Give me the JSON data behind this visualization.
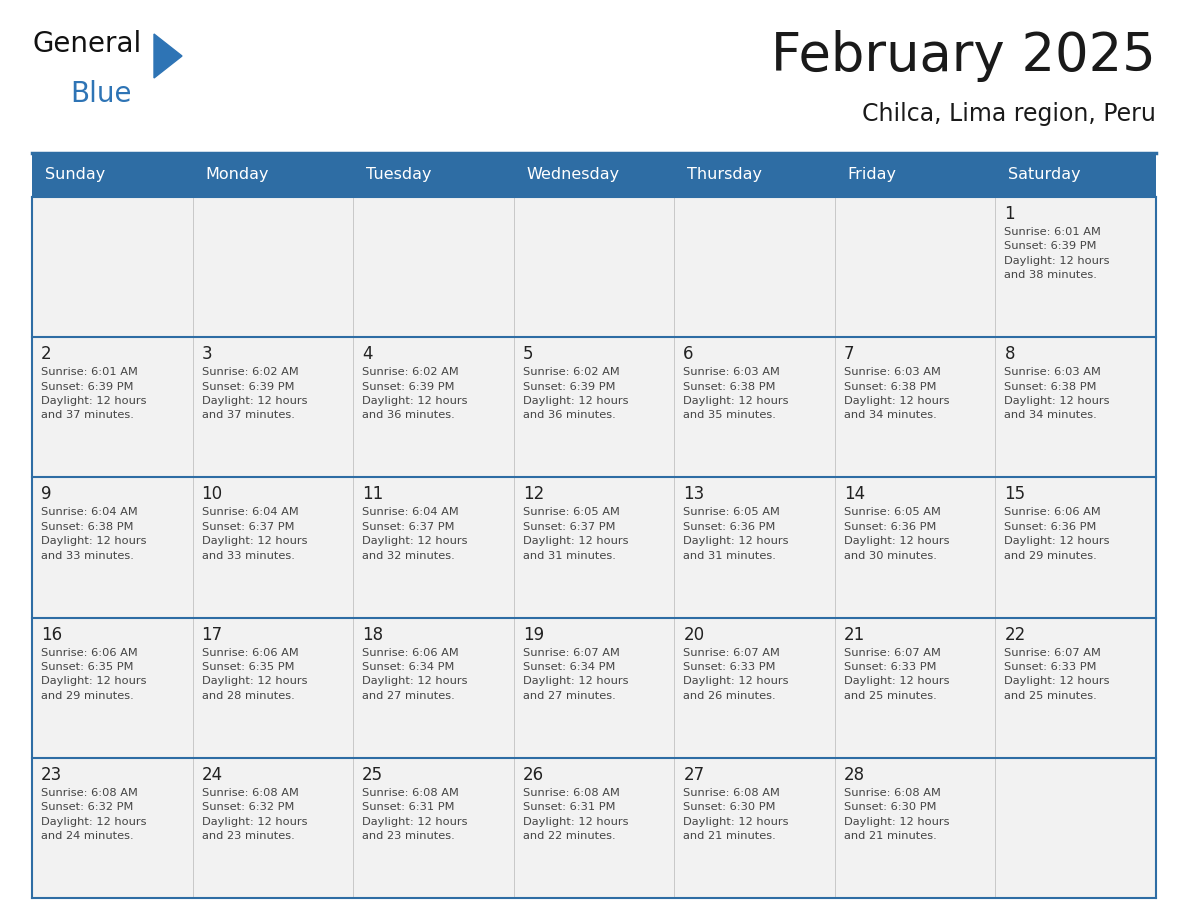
{
  "title": "February 2025",
  "subtitle": "Chilca, Lima region, Peru",
  "header_bg": "#2E6DA4",
  "header_text_color": "#FFFFFF",
  "day_names": [
    "Sunday",
    "Monday",
    "Tuesday",
    "Wednesday",
    "Thursday",
    "Friday",
    "Saturday"
  ],
  "row_bg": "#F2F2F2",
  "cell_text_color": "#444444",
  "day_num_color": "#222222",
  "title_color": "#1a1a1a",
  "subtitle_color": "#1a1a1a",
  "logo_general_color": "#111111",
  "logo_blue_color": "#2E74B5",
  "border_color": "#2E6DA4",
  "calendar": [
    [
      {
        "day": 0,
        "text": ""
      },
      {
        "day": 0,
        "text": ""
      },
      {
        "day": 0,
        "text": ""
      },
      {
        "day": 0,
        "text": ""
      },
      {
        "day": 0,
        "text": ""
      },
      {
        "day": 0,
        "text": ""
      },
      {
        "day": 1,
        "text": "Sunrise: 6:01 AM\nSunset: 6:39 PM\nDaylight: 12 hours\nand 38 minutes."
      }
    ],
    [
      {
        "day": 2,
        "text": "Sunrise: 6:01 AM\nSunset: 6:39 PM\nDaylight: 12 hours\nand 37 minutes."
      },
      {
        "day": 3,
        "text": "Sunrise: 6:02 AM\nSunset: 6:39 PM\nDaylight: 12 hours\nand 37 minutes."
      },
      {
        "day": 4,
        "text": "Sunrise: 6:02 AM\nSunset: 6:39 PM\nDaylight: 12 hours\nand 36 minutes."
      },
      {
        "day": 5,
        "text": "Sunrise: 6:02 AM\nSunset: 6:39 PM\nDaylight: 12 hours\nand 36 minutes."
      },
      {
        "day": 6,
        "text": "Sunrise: 6:03 AM\nSunset: 6:38 PM\nDaylight: 12 hours\nand 35 minutes."
      },
      {
        "day": 7,
        "text": "Sunrise: 6:03 AM\nSunset: 6:38 PM\nDaylight: 12 hours\nand 34 minutes."
      },
      {
        "day": 8,
        "text": "Sunrise: 6:03 AM\nSunset: 6:38 PM\nDaylight: 12 hours\nand 34 minutes."
      }
    ],
    [
      {
        "day": 9,
        "text": "Sunrise: 6:04 AM\nSunset: 6:38 PM\nDaylight: 12 hours\nand 33 minutes."
      },
      {
        "day": 10,
        "text": "Sunrise: 6:04 AM\nSunset: 6:37 PM\nDaylight: 12 hours\nand 33 minutes."
      },
      {
        "day": 11,
        "text": "Sunrise: 6:04 AM\nSunset: 6:37 PM\nDaylight: 12 hours\nand 32 minutes."
      },
      {
        "day": 12,
        "text": "Sunrise: 6:05 AM\nSunset: 6:37 PM\nDaylight: 12 hours\nand 31 minutes."
      },
      {
        "day": 13,
        "text": "Sunrise: 6:05 AM\nSunset: 6:36 PM\nDaylight: 12 hours\nand 31 minutes."
      },
      {
        "day": 14,
        "text": "Sunrise: 6:05 AM\nSunset: 6:36 PM\nDaylight: 12 hours\nand 30 minutes."
      },
      {
        "day": 15,
        "text": "Sunrise: 6:06 AM\nSunset: 6:36 PM\nDaylight: 12 hours\nand 29 minutes."
      }
    ],
    [
      {
        "day": 16,
        "text": "Sunrise: 6:06 AM\nSunset: 6:35 PM\nDaylight: 12 hours\nand 29 minutes."
      },
      {
        "day": 17,
        "text": "Sunrise: 6:06 AM\nSunset: 6:35 PM\nDaylight: 12 hours\nand 28 minutes."
      },
      {
        "day": 18,
        "text": "Sunrise: 6:06 AM\nSunset: 6:34 PM\nDaylight: 12 hours\nand 27 minutes."
      },
      {
        "day": 19,
        "text": "Sunrise: 6:07 AM\nSunset: 6:34 PM\nDaylight: 12 hours\nand 27 minutes."
      },
      {
        "day": 20,
        "text": "Sunrise: 6:07 AM\nSunset: 6:33 PM\nDaylight: 12 hours\nand 26 minutes."
      },
      {
        "day": 21,
        "text": "Sunrise: 6:07 AM\nSunset: 6:33 PM\nDaylight: 12 hours\nand 25 minutes."
      },
      {
        "day": 22,
        "text": "Sunrise: 6:07 AM\nSunset: 6:33 PM\nDaylight: 12 hours\nand 25 minutes."
      }
    ],
    [
      {
        "day": 23,
        "text": "Sunrise: 6:08 AM\nSunset: 6:32 PM\nDaylight: 12 hours\nand 24 minutes."
      },
      {
        "day": 24,
        "text": "Sunrise: 6:08 AM\nSunset: 6:32 PM\nDaylight: 12 hours\nand 23 minutes."
      },
      {
        "day": 25,
        "text": "Sunrise: 6:08 AM\nSunset: 6:31 PM\nDaylight: 12 hours\nand 23 minutes."
      },
      {
        "day": 26,
        "text": "Sunrise: 6:08 AM\nSunset: 6:31 PM\nDaylight: 12 hours\nand 22 minutes."
      },
      {
        "day": 27,
        "text": "Sunrise: 6:08 AM\nSunset: 6:30 PM\nDaylight: 12 hours\nand 21 minutes."
      },
      {
        "day": 28,
        "text": "Sunrise: 6:08 AM\nSunset: 6:30 PM\nDaylight: 12 hours\nand 21 minutes."
      },
      {
        "day": 0,
        "text": ""
      }
    ]
  ]
}
